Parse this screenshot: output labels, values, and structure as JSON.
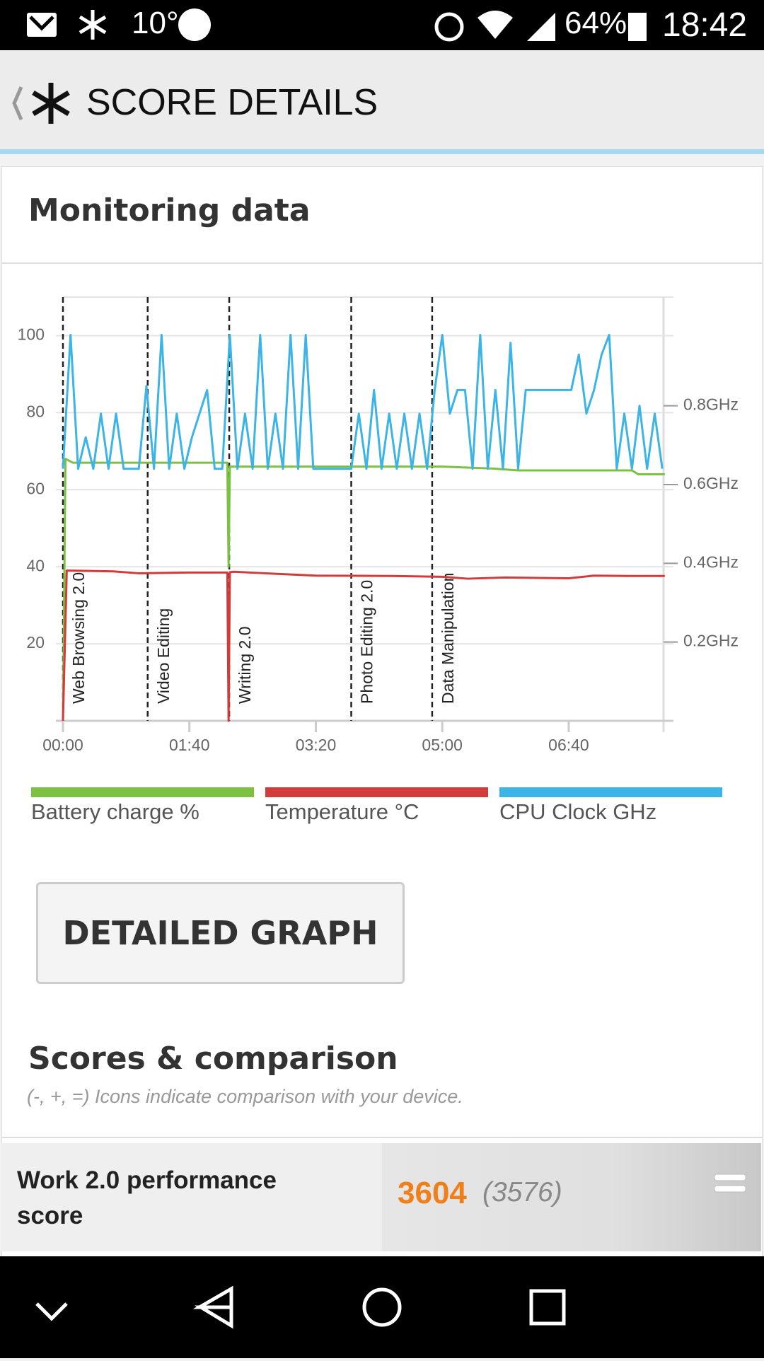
{
  "status_bar": {
    "temperature": "10°",
    "battery": "64%",
    "time": "18:42"
  },
  "header": {
    "title": "SCORE DETAILS"
  },
  "monitoring": {
    "title": "Monitoring data"
  },
  "chart_data": {
    "type": "line",
    "xlim": [
      0,
      475
    ],
    "xticks": [
      {
        "value": 0,
        "label": "00:00"
      },
      {
        "value": 100,
        "label": "01:40"
      },
      {
        "value": 200,
        "label": "03:20"
      },
      {
        "value": 300,
        "label": "05:00"
      },
      {
        "value": 400,
        "label": "06:40"
      }
    ],
    "ylim": [
      0,
      110
    ],
    "yticks": [
      20,
      40,
      60,
      80,
      100
    ],
    "y2lim": [
      0,
      1.076
    ],
    "y2ticks": [
      {
        "value": 0.2,
        "label": "0.2GHz"
      },
      {
        "value": 0.4,
        "label": "0.4GHz"
      },
      {
        "value": 0.6,
        "label": "0.6GHz"
      },
      {
        "value": 0.8,
        "label": "0.8GHz"
      }
    ],
    "grid": true,
    "markers": [
      {
        "x": 0,
        "label": "Web Browsing 2.0"
      },
      {
        "x": 67,
        "label": "Video Editing"
      },
      {
        "x": 131.5,
        "label": "Writing 2.0"
      },
      {
        "x": 228,
        "label": "Photo Editing 2.0"
      },
      {
        "x": 292,
        "label": "Data Manipulation"
      }
    ],
    "series": [
      {
        "name": "Battery charge %",
        "color": "#7dc142",
        "x": [
          0,
          2,
          8,
          130,
          131,
          132,
          135,
          200,
          300,
          340,
          360,
          450,
          455,
          476
        ],
        "values": [
          0,
          68,
          67,
          67,
          40,
          66,
          66,
          66,
          66,
          65.5,
          65,
          65,
          64,
          64
        ]
      },
      {
        "name": "Temperature °C",
        "color": "#d23b3b",
        "x": [
          0,
          3,
          40,
          60,
          100,
          130,
          131,
          132,
          135,
          160,
          200,
          260,
          300,
          320,
          350,
          400,
          420,
          450,
          476
        ],
        "values": [
          0,
          39,
          38.8,
          38.3,
          38.5,
          38.5,
          0,
          38.6,
          38.7,
          38.3,
          37.7,
          37.6,
          37.4,
          36.9,
          37.2,
          37.0,
          37.7,
          37.6,
          37.6
        ]
      },
      {
        "name": "CPU Clock GHz",
        "color": "#3cb4e5",
        "axis": "y2",
        "x": [
          0,
          6,
          12,
          18,
          24,
          30,
          36,
          42,
          48,
          54,
          60,
          66,
          72,
          78,
          84,
          90,
          96,
          102,
          108,
          114,
          120,
          126,
          132,
          138,
          144,
          150,
          156,
          162,
          168,
          174,
          180,
          186,
          192,
          198,
          204,
          210,
          216,
          222,
          228,
          234,
          240,
          246,
          252,
          258,
          264,
          270,
          276,
          282,
          288,
          294,
          300,
          306,
          312,
          318,
          324,
          330,
          336,
          342,
          348,
          354,
          360,
          366,
          372,
          378,
          384,
          390,
          396,
          402,
          408,
          414,
          420,
          426,
          432,
          438,
          444,
          450,
          456,
          462,
          468,
          474
        ],
        "values": [
          0.64,
          0.98,
          0.64,
          0.72,
          0.64,
          0.78,
          0.64,
          0.78,
          0.64,
          0.64,
          0.64,
          0.85,
          0.64,
          0.98,
          0.64,
          0.78,
          0.64,
          0.72,
          0.78,
          0.84,
          0.64,
          0.64,
          0.98,
          0.64,
          0.78,
          0.64,
          0.98,
          0.64,
          0.78,
          0.64,
          0.98,
          0.64,
          0.98,
          0.64,
          0.64,
          0.64,
          0.64,
          0.64,
          0.64,
          0.78,
          0.64,
          0.84,
          0.64,
          0.78,
          0.64,
          0.78,
          0.64,
          0.78,
          0.64,
          0.84,
          0.98,
          0.78,
          0.84,
          0.84,
          0.64,
          0.98,
          0.64,
          0.84,
          0.64,
          0.96,
          0.64,
          0.84,
          0.84,
          0.84,
          0.84,
          0.84,
          0.84,
          0.84,
          0.93,
          0.78,
          0.84,
          0.93,
          0.98,
          0.64,
          0.78,
          0.64,
          0.8,
          0.64,
          0.78,
          0.64
        ]
      }
    ]
  },
  "button": {
    "label": "DETAILED GRAPH"
  },
  "scores": {
    "title": "Scores & comparison",
    "note": "(-, +, =) Icons indicate comparison with your device.",
    "rows": [
      {
        "label": "Work 2.0 performance score",
        "score": 3604,
        "comparison": "(3576)"
      }
    ]
  }
}
